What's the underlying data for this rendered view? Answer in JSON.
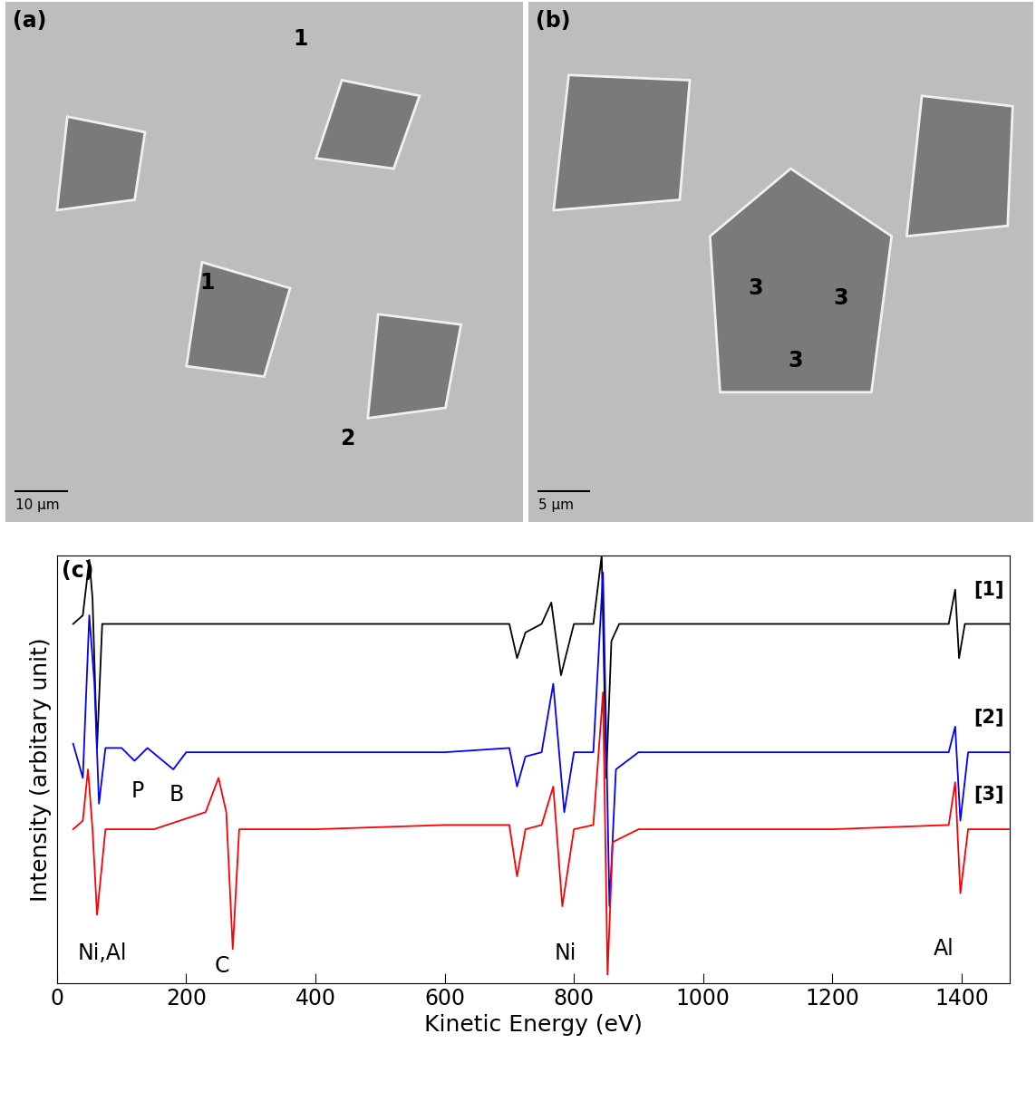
{
  "panels": [
    {
      "label": "(a)",
      "markers": [
        "1",
        "1",
        "2"
      ],
      "scale_bar": "10 µm"
    },
    {
      "label": "(b)",
      "markers": [
        "3",
        "3",
        "3"
      ],
      "scale_bar": "5 µm"
    }
  ],
  "chart_data": {
    "type": "line",
    "panel_label": "(c)",
    "x_label": "Kinetic Energy (eV)",
    "y_label": "Intensity (arbitary unit)",
    "xlim": [
      0,
      1475
    ],
    "xticks": [
      0,
      200,
      400,
      600,
      800,
      1000,
      1200,
      1400
    ],
    "ylim": [
      0,
      100
    ],
    "tick_labels": "x",
    "series": [
      {
        "name": "[1]",
        "color": "#000000",
        "x": [
          25,
          40,
          50,
          55,
          62,
          70,
          100,
          300,
          500,
          700,
          712,
          725,
          750,
          765,
          780,
          800,
          830,
          843,
          850,
          858,
          870,
          1000,
          1200,
          1380,
          1390,
          1396,
          1405,
          1475
        ],
        "values": [
          84,
          86,
          99,
          90,
          55,
          84,
          84,
          84,
          84,
          84,
          76,
          82,
          84,
          89,
          72,
          84,
          84,
          100,
          48,
          80,
          84,
          84,
          84,
          84,
          92,
          76,
          84,
          84
        ]
      },
      {
        "name": "[2]",
        "color": "#0000ff",
        "x": [
          25,
          40,
          50,
          58,
          65,
          75,
          100,
          120,
          140,
          180,
          200,
          400,
          600,
          700,
          712,
          725,
          750,
          768,
          785,
          800,
          830,
          845,
          855,
          865,
          900,
          1200,
          1380,
          1390,
          1398,
          1410,
          1475
        ],
        "values": [
          56,
          48,
          86,
          70,
          42,
          55,
          55,
          52,
          55,
          50,
          54,
          54,
          54,
          55,
          46,
          53,
          54,
          70,
          40,
          54,
          54,
          96,
          18,
          50,
          54,
          54,
          54,
          60,
          38,
          54,
          54
        ],
        "annotations": [
          {
            "text": "P",
            "x": 125,
            "y": 45
          },
          {
            "text": "B",
            "x": 185,
            "y": 44
          }
        ]
      },
      {
        "name": "[3]",
        "color": "#ff0000",
        "x": [
          25,
          40,
          48,
          55,
          62,
          75,
          150,
          230,
          250,
          262,
          272,
          282,
          400,
          600,
          700,
          712,
          725,
          750,
          768,
          782,
          800,
          830,
          845,
          852,
          860,
          900,
          1200,
          1380,
          1390,
          1398,
          1410,
          1475
        ],
        "values": [
          36,
          38,
          50,
          36,
          16,
          36,
          36,
          40,
          48,
          40,
          8,
          36,
          36,
          37,
          37,
          25,
          36,
          37,
          46,
          18,
          36,
          37,
          68,
          2,
          33,
          36,
          36,
          37,
          47,
          21,
          36,
          36
        ],
        "annotations": [
          {
            "text": "Ni,Al",
            "x": 70,
            "y": 7
          },
          {
            "text": "C",
            "x": 255,
            "y": 4
          },
          {
            "text": "Ni",
            "x": 787,
            "y": 7
          },
          {
            "text": "Al",
            "x": 1372,
            "y": 8
          }
        ]
      }
    ]
  }
}
